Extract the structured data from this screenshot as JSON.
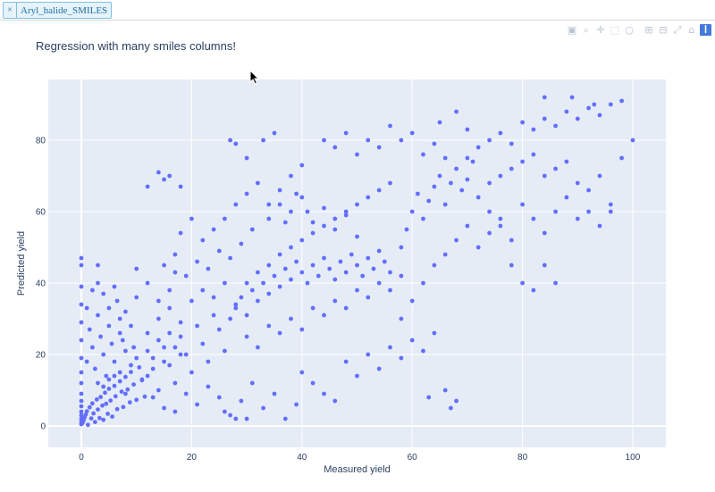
{
  "filter_chip": {
    "close_label": "×",
    "label": "Aryl_halide_SMILES"
  },
  "modebar": [
    {
      "name": "camera-icon",
      "glyph": "▣"
    },
    {
      "name": "zoom-icon",
      "glyph": "⌕"
    },
    {
      "name": "pan-icon",
      "glyph": "✛"
    },
    {
      "name": "box-select-icon",
      "glyph": "⬚"
    },
    {
      "name": "lasso-select-icon",
      "glyph": "○"
    },
    {
      "name": "zoom-in-icon",
      "glyph": "⊞"
    },
    {
      "name": "zoom-out-icon",
      "glyph": "⊟"
    },
    {
      "name": "autoscale-icon",
      "glyph": "⤢"
    },
    {
      "name": "reset-axes-icon",
      "glyph": "⌂"
    },
    {
      "name": "plotly-logo-icon",
      "glyph": "❙"
    }
  ],
  "colors": {
    "plot_bg": "#e5ecf6",
    "marker": "#636efa",
    "grid": "#ffffff",
    "text": "#2a3f5f"
  },
  "chart_data": {
    "type": "scatter",
    "title": "Regression with many smiles columns!",
    "xlabel": "Measured yield",
    "ylabel": "Predicted yield",
    "xlim": [
      -6,
      106
    ],
    "ylim": [
      -6,
      97
    ],
    "xticks": [
      0,
      20,
      40,
      60,
      80,
      100
    ],
    "yticks": [
      0,
      20,
      40,
      60,
      80
    ],
    "grid": true,
    "legend": "none",
    "points": [
      [
        0,
        0.5
      ],
      [
        0,
        1.2
      ],
      [
        0,
        2
      ],
      [
        0,
        3
      ],
      [
        0,
        4
      ],
      [
        0,
        5.5
      ],
      [
        0,
        7
      ],
      [
        0,
        9
      ],
      [
        0,
        12
      ],
      [
        0,
        15
      ],
      [
        0,
        19
      ],
      [
        0,
        24
      ],
      [
        0,
        29
      ],
      [
        0,
        34
      ],
      [
        0,
        39
      ],
      [
        0,
        45
      ],
      [
        0,
        47
      ],
      [
        0.2,
        0.8
      ],
      [
        0.4,
        1.5
      ],
      [
        0.6,
        2.4
      ],
      [
        0.8,
        3.2
      ],
      [
        1,
        4.1
      ],
      [
        1.2,
        0.3
      ],
      [
        1.5,
        5.2
      ],
      [
        1.8,
        2.1
      ],
      [
        2,
        6.3
      ],
      [
        2.2,
        3.5
      ],
      [
        2.5,
        1.1
      ],
      [
        2.8,
        7.4
      ],
      [
        3,
        4.6
      ],
      [
        3.3,
        2.2
      ],
      [
        3.5,
        8.1
      ],
      [
        3.8,
        5.7
      ],
      [
        4,
        1.7
      ],
      [
        4.3,
        9.3
      ],
      [
        4.5,
        6.2
      ],
      [
        4.8,
        3.4
      ],
      [
        5,
        10.4
      ],
      [
        5.3,
        7.1
      ],
      [
        5.6,
        2.6
      ],
      [
        6,
        11.2
      ],
      [
        6.2,
        8.3
      ],
      [
        6.5,
        4.7
      ],
      [
        7,
        12.5
      ],
      [
        7.3,
        9.6
      ],
      [
        7.6,
        5.3
      ],
      [
        8,
        13.7
      ],
      [
        8.4,
        10.2
      ],
      [
        8.8,
        6.6
      ],
      [
        9,
        15.1
      ],
      [
        9.5,
        11.6
      ],
      [
        10,
        7.3
      ],
      [
        10.5,
        16.4
      ],
      [
        11,
        12.8
      ],
      [
        11.5,
        8.2
      ],
      [
        1,
        18
      ],
      [
        2,
        22
      ],
      [
        1.5,
        27
      ],
      [
        2.5,
        16
      ],
      [
        3,
        31
      ],
      [
        3.5,
        25
      ],
      [
        4,
        20
      ],
      [
        4.5,
        14
      ],
      [
        5,
        28
      ],
      [
        5.5,
        23
      ],
      [
        6,
        18
      ],
      [
        6.5,
        35
      ],
      [
        7,
        30
      ],
      [
        7.5,
        24
      ],
      [
        8,
        21
      ],
      [
        2,
        38
      ],
      [
        3,
        45
      ],
      [
        4,
        37
      ],
      [
        5,
        33
      ],
      [
        6,
        39
      ],
      [
        7,
        26
      ],
      [
        8,
        32
      ],
      [
        9,
        28
      ],
      [
        9.5,
        22
      ],
      [
        10,
        36
      ],
      [
        1,
        33
      ],
      [
        3,
        40
      ],
      [
        12,
        14
      ],
      [
        13,
        19
      ],
      [
        14,
        10
      ],
      [
        15,
        22
      ],
      [
        16,
        17
      ],
      [
        17,
        12
      ],
      [
        18,
        25
      ],
      [
        19,
        20
      ],
      [
        20,
        15
      ],
      [
        21,
        28
      ],
      [
        22,
        23
      ],
      [
        23,
        18
      ],
      [
        24,
        31
      ],
      [
        25,
        27
      ],
      [
        26,
        21
      ],
      [
        12,
        26
      ],
      [
        14,
        30
      ],
      [
        16,
        33
      ],
      [
        18,
        29
      ],
      [
        20,
        35
      ],
      [
        22,
        38
      ],
      [
        24,
        36
      ],
      [
        26,
        40
      ],
      [
        28,
        34
      ],
      [
        12,
        67
      ],
      [
        14,
        71
      ],
      [
        15,
        69
      ],
      [
        16,
        70
      ],
      [
        18,
        67
      ],
      [
        17,
        43
      ],
      [
        13,
        8
      ],
      [
        15,
        5
      ],
      [
        17,
        4
      ],
      [
        19,
        9
      ],
      [
        21,
        6
      ],
      [
        23,
        11
      ],
      [
        25,
        8
      ],
      [
        27,
        3
      ],
      [
        29,
        7
      ],
      [
        31,
        12
      ],
      [
        33,
        5
      ],
      [
        35,
        9
      ],
      [
        37,
        2
      ],
      [
        39,
        6
      ],
      [
        30,
        2
      ],
      [
        28,
        2
      ],
      [
        26,
        4
      ],
      [
        27,
        30
      ],
      [
        28,
        33
      ],
      [
        29,
        36
      ],
      [
        30,
        31
      ],
      [
        31,
        38
      ],
      [
        32,
        35
      ],
      [
        33,
        40
      ],
      [
        34,
        37
      ],
      [
        35,
        42
      ],
      [
        36,
        39
      ],
      [
        37,
        44
      ],
      [
        38,
        41
      ],
      [
        39,
        46
      ],
      [
        40,
        43
      ],
      [
        41,
        40
      ],
      [
        42,
        45
      ],
      [
        43,
        42
      ],
      [
        44,
        47
      ],
      [
        45,
        44
      ],
      [
        46,
        41
      ],
      [
        47,
        46
      ],
      [
        48,
        43
      ],
      [
        49,
        48
      ],
      [
        50,
        45
      ],
      [
        51,
        42
      ],
      [
        52,
        47
      ],
      [
        53,
        44
      ],
      [
        54,
        49
      ],
      [
        55,
        46
      ],
      [
        56,
        43
      ],
      [
        30,
        40
      ],
      [
        32,
        43
      ],
      [
        34,
        45
      ],
      [
        36,
        48
      ],
      [
        38,
        50
      ],
      [
        40,
        52
      ],
      [
        42,
        54
      ],
      [
        44,
        56
      ],
      [
        46,
        58
      ],
      [
        48,
        60
      ],
      [
        50,
        62
      ],
      [
        52,
        64
      ],
      [
        54,
        66
      ],
      [
        56,
        68
      ],
      [
        30,
        25
      ],
      [
        32,
        22
      ],
      [
        34,
        28
      ],
      [
        36,
        26
      ],
      [
        38,
        30
      ],
      [
        40,
        27
      ],
      [
        42,
        33
      ],
      [
        44,
        31
      ],
      [
        46,
        35
      ],
      [
        48,
        33
      ],
      [
        50,
        38
      ],
      [
        52,
        36
      ],
      [
        54,
        40
      ],
      [
        56,
        38
      ],
      [
        58,
        42
      ],
      [
        27,
        80
      ],
      [
        28,
        79
      ],
      [
        30,
        75
      ],
      [
        33,
        80
      ],
      [
        35,
        82
      ],
      [
        38,
        70
      ],
      [
        40,
        73
      ],
      [
        31,
        55
      ],
      [
        34,
        58
      ],
      [
        36,
        62
      ],
      [
        39,
        65
      ],
      [
        41,
        60
      ],
      [
        37,
        57
      ],
      [
        40,
        15
      ],
      [
        42,
        12
      ],
      [
        44,
        9
      ],
      [
        46,
        7
      ],
      [
        48,
        18
      ],
      [
        50,
        14
      ],
      [
        52,
        20
      ],
      [
        54,
        16
      ],
      [
        56,
        22
      ],
      [
        58,
        19
      ],
      [
        60,
        24
      ],
      [
        62,
        21
      ],
      [
        64,
        26
      ],
      [
        66,
        10
      ],
      [
        68,
        7
      ],
      [
        67,
        5
      ],
      [
        63,
        8
      ],
      [
        58,
        50
      ],
      [
        59,
        55
      ],
      [
        60,
        60
      ],
      [
        61,
        65
      ],
      [
        62,
        58
      ],
      [
        63,
        63
      ],
      [
        64,
        67
      ],
      [
        65,
        70
      ],
      [
        66,
        62
      ],
      [
        67,
        68
      ],
      [
        68,
        72
      ],
      [
        69,
        66
      ],
      [
        70,
        69
      ],
      [
        71,
        74
      ],
      [
        58,
        30
      ],
      [
        60,
        35
      ],
      [
        62,
        40
      ],
      [
        64,
        45
      ],
      [
        66,
        48
      ],
      [
        68,
        52
      ],
      [
        70,
        56
      ],
      [
        72,
        50
      ],
      [
        74,
        54
      ],
      [
        76,
        58
      ],
      [
        78,
        45
      ],
      [
        80,
        40
      ],
      [
        82,
        38
      ],
      [
        84,
        45
      ],
      [
        86,
        40
      ],
      [
        70,
        75
      ],
      [
        72,
        78
      ],
      [
        74,
        80
      ],
      [
        76,
        82
      ],
      [
        78,
        79
      ],
      [
        80,
        85
      ],
      [
        82,
        83
      ],
      [
        84,
        86
      ],
      [
        86,
        84
      ],
      [
        88,
        88
      ],
      [
        90,
        86
      ],
      [
        92,
        89
      ],
      [
        94,
        87
      ],
      [
        96,
        90
      ],
      [
        98,
        91
      ],
      [
        72,
        64
      ],
      [
        74,
        68
      ],
      [
        76,
        70
      ],
      [
        78,
        72
      ],
      [
        80,
        74
      ],
      [
        82,
        76
      ],
      [
        84,
        70
      ],
      [
        86,
        72
      ],
      [
        88,
        74
      ],
      [
        90,
        68
      ],
      [
        92,
        66
      ],
      [
        94,
        70
      ],
      [
        96,
        62
      ],
      [
        98,
        75
      ],
      [
        100,
        80
      ],
      [
        74,
        60
      ],
      [
        76,
        56
      ],
      [
        78,
        52
      ],
      [
        80,
        62
      ],
      [
        82,
        58
      ],
      [
        84,
        54
      ],
      [
        86,
        60
      ],
      [
        88,
        64
      ],
      [
        90,
        58
      ],
      [
        92,
        60
      ],
      [
        94,
        56
      ],
      [
        96,
        60
      ],
      [
        84,
        92
      ],
      [
        89,
        92
      ],
      [
        93,
        90
      ],
      [
        44,
        80
      ],
      [
        46,
        78
      ],
      [
        48,
        82
      ],
      [
        50,
        76
      ],
      [
        52,
        80
      ],
      [
        54,
        78
      ],
      [
        56,
        84
      ],
      [
        58,
        80
      ],
      [
        60,
        82
      ],
      [
        62,
        76
      ],
      [
        64,
        79
      ],
      [
        66,
        75
      ],
      [
        65,
        85
      ],
      [
        70,
        83
      ],
      [
        68,
        88
      ],
      [
        22,
        52
      ],
      [
        24,
        55
      ],
      [
        26,
        58
      ],
      [
        28,
        62
      ],
      [
        30,
        65
      ],
      [
        32,
        68
      ],
      [
        34,
        62
      ],
      [
        36,
        66
      ],
      [
        38,
        60
      ],
      [
        40,
        64
      ],
      [
        42,
        57
      ],
      [
        44,
        61
      ],
      [
        46,
        55
      ],
      [
        48,
        59
      ],
      [
        50,
        53
      ],
      [
        15,
        45
      ],
      [
        17,
        48
      ],
      [
        19,
        42
      ],
      [
        21,
        46
      ],
      [
        23,
        44
      ],
      [
        25,
        49
      ],
      [
        27,
        47
      ],
      [
        29,
        51
      ],
      [
        20,
        58
      ],
      [
        18,
        54
      ],
      [
        16,
        38
      ],
      [
        14,
        35
      ],
      [
        12,
        40
      ],
      [
        10,
        44
      ],
      [
        3,
        12
      ],
      [
        4,
        11
      ],
      [
        5,
        13
      ],
      [
        6,
        14
      ],
      [
        7,
        15
      ],
      [
        8,
        9
      ],
      [
        9,
        17
      ],
      [
        10,
        19
      ],
      [
        11,
        13
      ],
      [
        12,
        21
      ],
      [
        13,
        16
      ],
      [
        14,
        24
      ],
      [
        15,
        18
      ],
      [
        16,
        26
      ],
      [
        17,
        22
      ],
      [
        18,
        20
      ]
    ]
  }
}
